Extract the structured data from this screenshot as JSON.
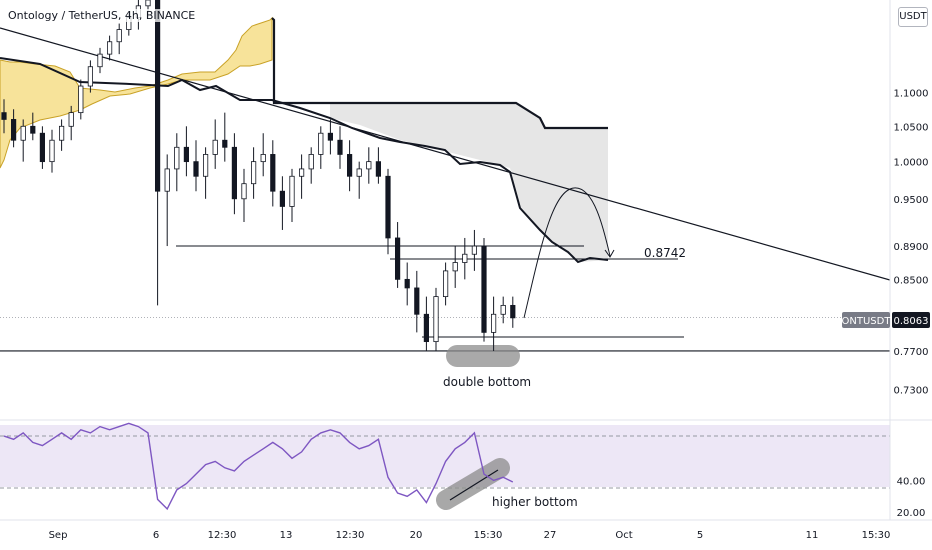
{
  "header": {
    "title": "Ontology / TetherUS, 4h, BINANCE",
    "currency_badge": "USDT"
  },
  "colors": {
    "cloud_fill": "#f7e39a",
    "cloud_line": "#c9a227",
    "projection_fill": "#e6e6e6",
    "rsi_line": "#7e57c2",
    "rsi_band": "#ede7f6",
    "candle": "#131722",
    "highlight": "#8c8c8c"
  },
  "chart_data": [
    {
      "type": "line",
      "title": "Ontology / TetherUS, 4h, BINANCE",
      "x_tick_labels": [
        "Sep",
        "6",
        "12:30",
        "13",
        "12:30",
        "20",
        "15:30",
        "27",
        "Oct",
        "5",
        "11",
        "15:30"
      ],
      "y_tick_labels": [
        "1.1000",
        "1.0500",
        "1.0000",
        "0.9500",
        "0.8900",
        "0.8500",
        "0.7700",
        "0.7300"
      ],
      "y_scale": "log",
      "ylim": [
        0.7,
        1.25
      ],
      "price_label": {
        "symbol": "ONTUSDT",
        "value": "0.8063"
      },
      "level_label": "0.8742",
      "annotations": [
        "double bottom"
      ],
      "levels": {
        "support": 0.77,
        "range_low": 0.89,
        "neck": 0.8742,
        "bottom": 0.785,
        "cloud_top": 1.045
      },
      "series": [
        {
          "type": "candlestick",
          "ohlc": [
            [
              1.07,
              1.09,
              1.04,
              1.06
            ],
            [
              1.06,
              1.075,
              1.02,
              1.03
            ],
            [
              1.03,
              1.06,
              1.0,
              1.05
            ],
            [
              1.05,
              1.07,
              1.03,
              1.04
            ],
            [
              1.04,
              1.05,
              0.99,
              1.0
            ],
            [
              1.0,
              1.045,
              0.985,
              1.03
            ],
            [
              1.03,
              1.06,
              1.015,
              1.05
            ],
            [
              1.05,
              1.08,
              1.03,
              1.07
            ],
            [
              1.07,
              1.12,
              1.06,
              1.11
            ],
            [
              1.11,
              1.15,
              1.1,
              1.14
            ],
            [
              1.14,
              1.17,
              1.13,
              1.16
            ],
            [
              1.16,
              1.19,
              1.15,
              1.18
            ],
            [
              1.18,
              1.21,
              1.16,
              1.2
            ],
            [
              1.2,
              1.23,
              1.19,
              1.22
            ],
            [
              1.22,
              1.25,
              1.2,
              1.24
            ],
            [
              1.24,
              1.26,
              1.22,
              1.25
            ],
            [
              1.25,
              1.27,
              0.82,
              0.96
            ],
            [
              0.96,
              1.01,
              0.89,
              0.99
            ],
            [
              0.99,
              1.04,
              0.96,
              1.02
            ],
            [
              1.02,
              1.05,
              0.98,
              1.0
            ],
            [
              1.0,
              1.03,
              0.96,
              0.98
            ],
            [
              0.98,
              1.02,
              0.95,
              1.01
            ],
            [
              1.01,
              1.06,
              0.99,
              1.03
            ],
            [
              1.03,
              1.07,
              1.0,
              1.02
            ],
            [
              1.02,
              1.04,
              0.93,
              0.95
            ],
            [
              0.95,
              0.99,
              0.92,
              0.97
            ],
            [
              0.97,
              1.02,
              0.95,
              1.0
            ],
            [
              1.0,
              1.04,
              0.98,
              1.01
            ],
            [
              1.01,
              1.03,
              0.94,
              0.96
            ],
            [
              0.96,
              0.98,
              0.91,
              0.94
            ],
            [
              0.94,
              0.99,
              0.92,
              0.98
            ],
            [
              0.98,
              1.01,
              0.95,
              0.99
            ],
            [
              0.99,
              1.02,
              0.97,
              1.01
            ],
            [
              1.01,
              1.05,
              0.99,
              1.04
            ],
            [
              1.04,
              1.06,
              1.01,
              1.03
            ],
            [
              1.03,
              1.05,
              0.99,
              1.01
            ],
            [
              1.01,
              1.03,
              0.96,
              0.98
            ],
            [
              0.98,
              1.0,
              0.95,
              0.99
            ],
            [
              0.99,
              1.02,
              0.97,
              1.0
            ],
            [
              1.0,
              1.02,
              0.97,
              0.98
            ],
            [
              0.98,
              0.99,
              0.88,
              0.9
            ],
            [
              0.9,
              0.92,
              0.84,
              0.85
            ],
            [
              0.85,
              0.87,
              0.82,
              0.84
            ],
            [
              0.84,
              0.86,
              0.79,
              0.81
            ],
            [
              0.81,
              0.83,
              0.77,
              0.78
            ],
            [
              0.78,
              0.84,
              0.77,
              0.83
            ],
            [
              0.83,
              0.87,
              0.82,
              0.86
            ],
            [
              0.86,
              0.89,
              0.84,
              0.87
            ],
            [
              0.87,
              0.9,
              0.85,
              0.88
            ],
            [
              0.88,
              0.91,
              0.86,
              0.89
            ],
            [
              0.89,
              0.9,
              0.78,
              0.79
            ],
            [
              0.79,
              0.83,
              0.77,
              0.81
            ],
            [
              0.81,
              0.83,
              0.8,
              0.82
            ],
            [
              0.82,
              0.83,
              0.795,
              0.806
            ]
          ]
        },
        {
          "name": "",
          "type": "line",
          "values": [
            1.045,
            1.045,
            1.045,
            1.045,
            1.045,
            1.045,
            1.045,
            1.045,
            1.045,
            1.045,
            1.045,
            1.045,
            1.045,
            1.04,
            1.03,
            1.02,
            1.01,
            1.0,
            0.99,
            0.985,
            0.975,
            0.96,
            0.94,
            0.92,
            0.9,
            0.89,
            0.88,
            0.875,
            0.8742
          ]
        }
      ]
    },
    {
      "type": "line",
      "title": "",
      "y_tick_labels": [
        "40.00",
        "20.00"
      ],
      "ylim": [
        15,
        75
      ],
      "annotations": [
        "higher bottom"
      ],
      "series": [
        {
          "name": "",
          "values": [
            68,
            66,
            70,
            64,
            62,
            66,
            70,
            66,
            72,
            70,
            74,
            72,
            74,
            76,
            74,
            70,
            28,
            22,
            34,
            38,
            44,
            50,
            52,
            48,
            46,
            52,
            56,
            60,
            64,
            60,
            54,
            58,
            66,
            70,
            72,
            70,
            64,
            60,
            62,
            66,
            42,
            32,
            30,
            34,
            26,
            38,
            52,
            60,
            64,
            70,
            44,
            40,
            42,
            39
          ]
        }
      ]
    }
  ]
}
